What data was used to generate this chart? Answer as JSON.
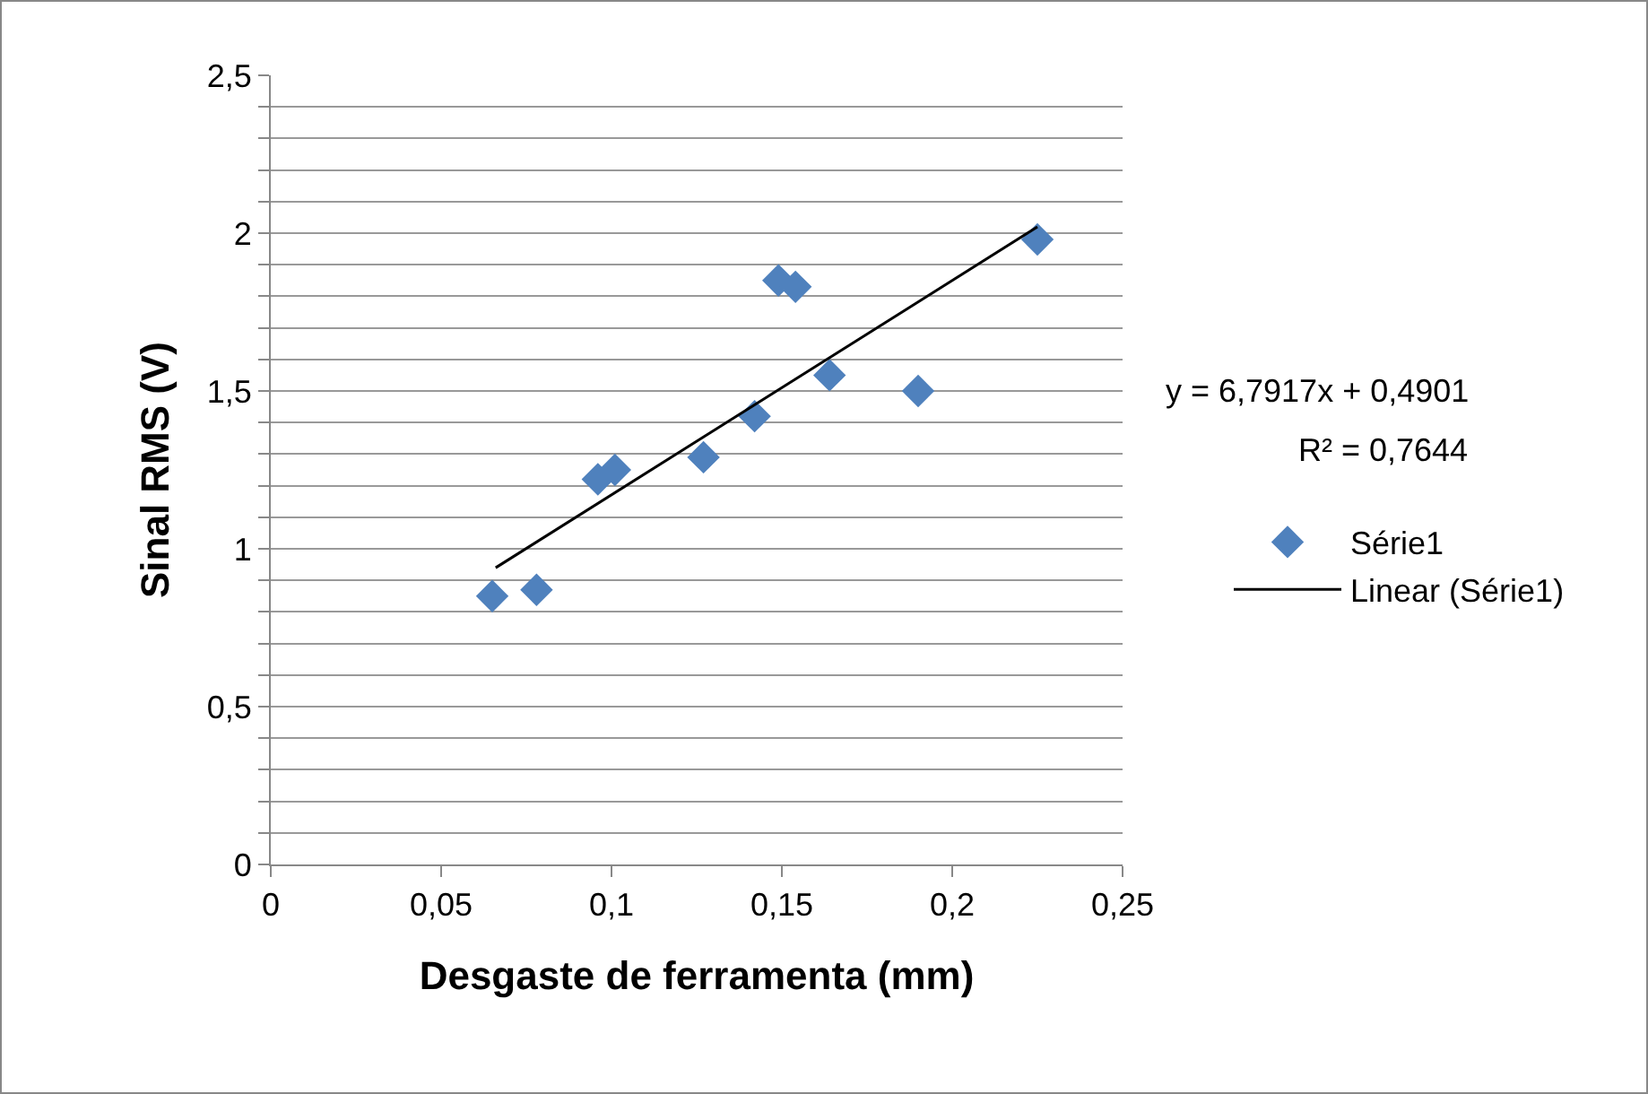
{
  "chart_data": {
    "type": "scatter",
    "xlabel": "Desgaste de ferramenta (mm)",
    "ylabel": "Sinal RMS (V)",
    "annotations": [
      "y = 6,7917x + 0,4901",
      "R² = 0,7644"
    ],
    "series": [
      {
        "name": "Série1",
        "marker": "diamond",
        "color": "#4f81bd",
        "x": [
          0.065,
          0.078,
          0.096,
          0.101,
          0.127,
          0.142,
          0.149,
          0.154,
          0.164,
          0.19,
          0.225
        ],
        "values": [
          0.85,
          0.87,
          1.22,
          1.25,
          1.29,
          1.42,
          1.85,
          1.83,
          1.55,
          1.5,
          1.98
        ]
      },
      {
        "name": "Linear (Série1)",
        "type": "line",
        "color": "#000000",
        "x": [
          0.066,
          0.225
        ],
        "values": [
          0.94,
          2.02
        ]
      }
    ],
    "xlim": [
      0,
      0.25
    ],
    "xticks": [
      0,
      {
        "value": 0.05,
        "label": "0,05"
      },
      {
        "value": 0.1,
        "label": "0,1"
      },
      {
        "value": 0.15,
        "label": "0,15"
      },
      {
        "value": 0.2,
        "label": "0,2"
      },
      {
        "value": 0.25,
        "label": "0,25"
      }
    ],
    "ylim": [
      0,
      2.5
    ],
    "yticks": [
      0,
      {
        "value": 0.1,
        "label": null
      },
      {
        "value": 0.2,
        "label": null
      },
      {
        "value": 0.3,
        "label": null
      },
      {
        "value": 0.4,
        "label": null
      },
      {
        "value": 0.5,
        "label": "0,5"
      },
      {
        "value": 0.6,
        "label": null
      },
      {
        "value": 0.7,
        "label": null
      },
      {
        "value": 0.8,
        "label": null
      },
      {
        "value": 0.9,
        "label": null
      },
      1,
      {
        "value": 1.1,
        "label": null
      },
      {
        "value": 1.2,
        "label": null
      },
      {
        "value": 1.3,
        "label": null
      },
      {
        "value": 1.4,
        "label": null
      },
      {
        "value": 1.5,
        "label": "1,5"
      },
      {
        "value": 1.6,
        "label": null
      },
      {
        "value": 1.7,
        "label": null
      },
      {
        "value": 1.8,
        "label": null
      },
      {
        "value": 1.9,
        "label": null
      },
      2,
      {
        "value": 2.1,
        "label": null
      },
      {
        "value": 2.2,
        "label": null
      },
      {
        "value": 2.3,
        "label": null
      },
      {
        "value": 2.4,
        "label": null
      },
      {
        "value": 2.5,
        "label": "2,5"
      }
    ],
    "grid": "y",
    "legend": "right",
    "line_style": "solid"
  }
}
